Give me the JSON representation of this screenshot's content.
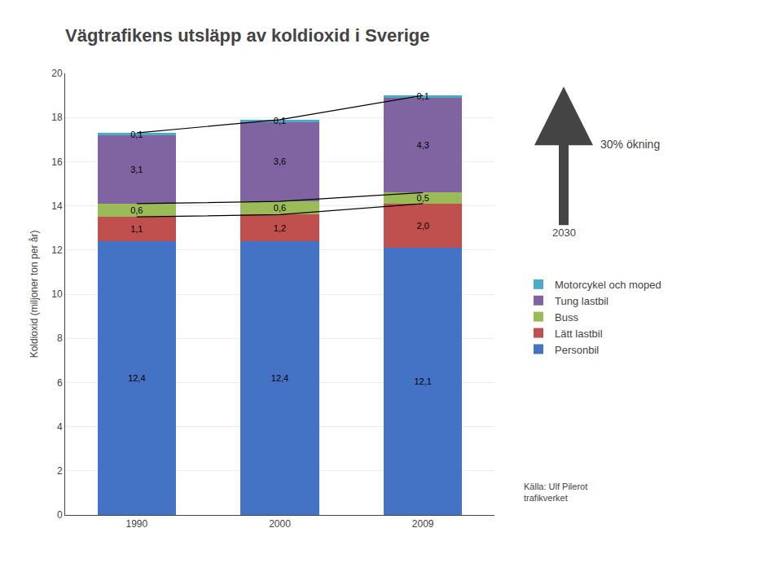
{
  "chart_data": {
    "type": "bar",
    "title": "Vägtrafikens utsläpp av koldioxid i Sverige",
    "y_label": "Koldioxid (miljoner ton per år)",
    "categories": [
      "1990",
      "2000",
      "2009"
    ],
    "series": [
      {
        "name": "Personbil",
        "color": "#4472C4",
        "values": [
          12.4,
          12.4,
          12.1
        ],
        "value_labels": [
          "12,4",
          "12,4",
          "12,1"
        ]
      },
      {
        "name": "Lätt lastbil",
        "color": "#C0504D",
        "values": [
          1.1,
          1.2,
          2.0
        ],
        "value_labels": [
          "1,1",
          "1,2",
          "2,0"
        ],
        "line_style": "solid"
      },
      {
        "name": "Buss",
        "color": "#9BBB59",
        "values": [
          0.6,
          0.6,
          0.5
        ],
        "value_labels": [
          "0,6",
          "0,6",
          "0,5"
        ],
        "line_style": "solid"
      },
      {
        "name": "Tung lastbil",
        "color": "#8064A2",
        "values": [
          3.1,
          3.6,
          4.3
        ],
        "value_labels": [
          "3,1",
          "3,6",
          "4,3"
        ]
      },
      {
        "name": "Motorcykel och moped",
        "color": "#4BACC6",
        "values": [
          0.1,
          0.1,
          0.1
        ],
        "value_labels": [
          "0,1",
          "0,1",
          "0,1"
        ],
        "line_style": "solid"
      }
    ],
    "stacked": true,
    "data_labels": true,
    "ylim": [
      0,
      20
    ],
    "yticks": [
      0,
      2,
      4,
      6,
      8,
      10,
      12,
      14,
      16,
      18,
      20
    ],
    "grid": true,
    "legend": "right",
    "annotations": [
      "30% ökning",
      "2030",
      "Källa: Ulf Pilerot\ntrafikverket"
    ]
  }
}
